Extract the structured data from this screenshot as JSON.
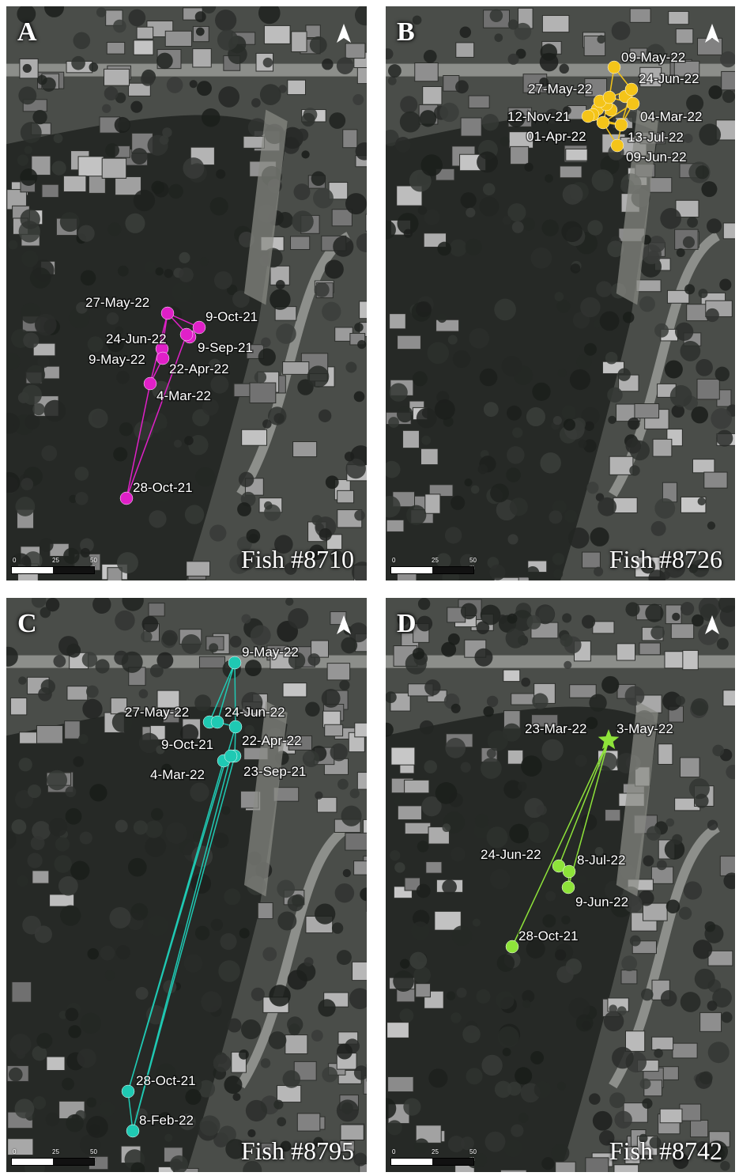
{
  "panels": [
    {
      "letter": "A",
      "fish": "Fish #8710",
      "color": "#e020c8",
      "points": [
        {
          "label": "27-May-22"
        },
        {
          "label": "9-Oct-21"
        },
        {
          "label": "24-Jun-22"
        },
        {
          "label": "9-Sep-21"
        },
        {
          "label": "9-May-22"
        },
        {
          "label": "22-Apr-22"
        },
        {
          "label": "4-Mar-22"
        },
        {
          "label": "28-Oct-21"
        }
      ]
    },
    {
      "letter": "B",
      "fish": "Fish #8726",
      "color": "#f4c419",
      "points": [
        {
          "label": "09-May-22"
        },
        {
          "label": "24-Jun-22"
        },
        {
          "label": "27-May-22"
        },
        {
          "label": "04-Mar-22"
        },
        {
          "label": "12-Nov-21"
        },
        {
          "label": "13-Jul-22"
        },
        {
          "label": "01-Apr-22"
        },
        {
          "label": "09-Jun-22"
        }
      ]
    },
    {
      "letter": "C",
      "fish": "Fish #8795",
      "color": "#1fc9b3",
      "points": [
        {
          "label": "9-May-22"
        },
        {
          "label": "27-May-22"
        },
        {
          "label": "24-Jun-22"
        },
        {
          "label": "9-Oct-21"
        },
        {
          "label": "22-Apr-22"
        },
        {
          "label": "4-Mar-22"
        },
        {
          "label": "23-Sep-21"
        },
        {
          "label": "28-Oct-21"
        },
        {
          "label": "8-Feb-22"
        }
      ]
    },
    {
      "letter": "D",
      "fish": "Fish #8742",
      "color": "#8ee33a",
      "points": [
        {
          "label": "23-Mar-22"
        },
        {
          "label": "3-May-22"
        },
        {
          "label": "24-Jun-22"
        },
        {
          "label": "8-Jul-22"
        },
        {
          "label": "9-Jun-22"
        },
        {
          "label": "28-Oct-21"
        }
      ]
    }
  ],
  "scale": {
    "ticks": [
      "0",
      "25",
      "50 m"
    ]
  },
  "north_icon": "north-arrow-icon"
}
